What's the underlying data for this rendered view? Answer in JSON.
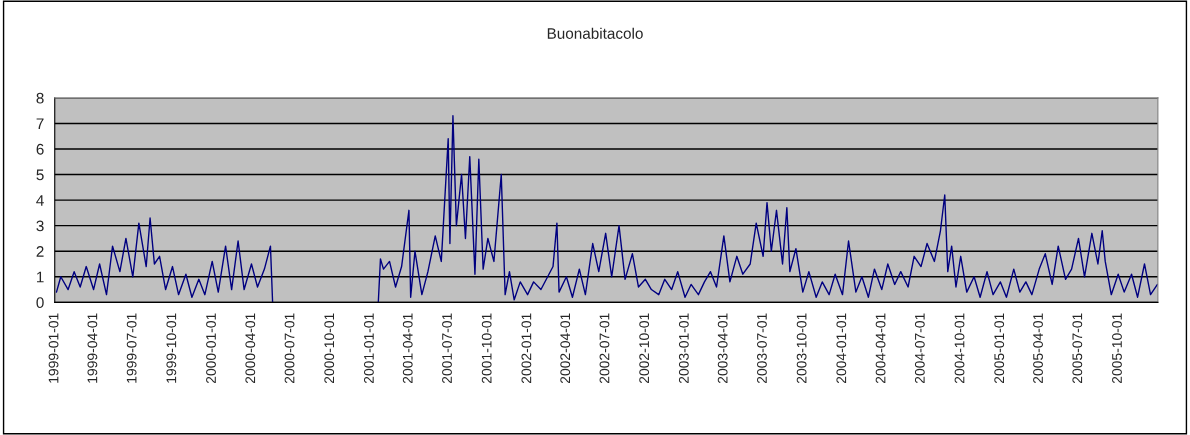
{
  "chart_data": {
    "type": "line",
    "title": "Buonabitacolo",
    "x": [
      "1999-01-05",
      "1999-01-15",
      "1999-02-01",
      "1999-02-15",
      "1999-03-01",
      "1999-03-15",
      "1999-04-01",
      "1999-04-15",
      "1999-05-01",
      "1999-05-15",
      "1999-06-01",
      "1999-06-15",
      "1999-07-01",
      "1999-07-15",
      "1999-08-01",
      "1999-08-10",
      "1999-08-20",
      "1999-09-01",
      "1999-09-15",
      "1999-10-01",
      "1999-10-15",
      "1999-11-01",
      "1999-11-15",
      "1999-12-01",
      "1999-12-15",
      "2000-01-01",
      "2000-01-15",
      "2000-02-01",
      "2000-02-15",
      "2000-03-01",
      "2000-03-15",
      "2000-04-01",
      "2000-04-15",
      "2000-05-01",
      "2000-05-15",
      "2000-05-20",
      "2000-09-01",
      "2001-01-20",
      "2001-01-25",
      "2001-02-01",
      "2001-02-15",
      "2001-03-01",
      "2001-03-15",
      "2001-04-01",
      "2001-04-05",
      "2001-04-15",
      "2001-05-01",
      "2001-05-15",
      "2001-06-01",
      "2001-06-15",
      "2001-07-01",
      "2001-07-05",
      "2001-07-12",
      "2001-07-20",
      "2001-08-01",
      "2001-08-10",
      "2001-08-20",
      "2001-09-01",
      "2001-09-10",
      "2001-09-20",
      "2001-10-01",
      "2001-10-15",
      "2001-11-01",
      "2001-11-10",
      "2001-11-20",
      "2001-12-01",
      "2001-12-15",
      "2002-01-01",
      "2002-01-15",
      "2002-02-01",
      "2002-03-01",
      "2002-03-10",
      "2002-03-15",
      "2002-04-01",
      "2002-04-15",
      "2002-05-01",
      "2002-05-15",
      "2002-06-01",
      "2002-06-15",
      "2002-07-01",
      "2002-07-15",
      "2002-08-01",
      "2002-08-15",
      "2002-09-01",
      "2002-09-15",
      "2002-10-01",
      "2002-10-15",
      "2002-11-01",
      "2002-11-15",
      "2002-12-01",
      "2002-12-15",
      "2003-01-01",
      "2003-01-15",
      "2003-02-01",
      "2003-02-15",
      "2003-03-01",
      "2003-03-15",
      "2003-04-01",
      "2003-04-15",
      "2003-05-01",
      "2003-05-15",
      "2003-06-01",
      "2003-06-15",
      "2003-07-01",
      "2003-07-10",
      "2003-07-20",
      "2003-08-01",
      "2003-08-15",
      "2003-08-25",
      "2003-09-01",
      "2003-09-15",
      "2003-10-01",
      "2003-10-15",
      "2003-11-01",
      "2003-11-15",
      "2003-12-01",
      "2003-12-15",
      "2004-01-01",
      "2004-01-15",
      "2004-02-01",
      "2004-02-15",
      "2004-03-01",
      "2004-03-15",
      "2004-04-01",
      "2004-04-15",
      "2004-05-01",
      "2004-05-15",
      "2004-06-01",
      "2004-06-15",
      "2004-07-01",
      "2004-07-15",
      "2004-08-01",
      "2004-08-15",
      "2004-08-25",
      "2004-09-01",
      "2004-09-10",
      "2004-09-20",
      "2004-10-01",
      "2004-10-15",
      "2004-11-01",
      "2004-11-15",
      "2004-12-01",
      "2004-12-15",
      "2005-01-01",
      "2005-01-15",
      "2005-02-01",
      "2005-02-15",
      "2005-03-01",
      "2005-03-15",
      "2005-04-01",
      "2005-04-15",
      "2005-05-01",
      "2005-05-15",
      "2005-06-01",
      "2005-06-15",
      "2005-07-01",
      "2005-07-15",
      "2005-08-01",
      "2005-08-15",
      "2005-08-25",
      "2005-09-01",
      "2005-09-15",
      "2005-10-01",
      "2005-10-15",
      "2005-11-01",
      "2005-11-15",
      "2005-12-01",
      "2005-12-15",
      "2005-12-31"
    ],
    "series": [
      {
        "color": "#000080",
        "values": [
          0.4,
          1.0,
          0.5,
          1.2,
          0.6,
          1.4,
          0.5,
          1.5,
          0.3,
          2.2,
          1.2,
          2.5,
          1.0,
          3.1,
          1.4,
          3.3,
          1.5,
          1.8,
          0.5,
          1.4,
          0.3,
          1.1,
          0.2,
          0.9,
          0.3,
          1.6,
          0.4,
          2.2,
          0.5,
          2.4,
          0.5,
          1.5,
          0.6,
          1.3,
          2.2,
          0,
          null,
          0,
          1.7,
          1.3,
          1.6,
          0.6,
          1.4,
          3.6,
          0.2,
          2.0,
          0.3,
          1.2,
          2.6,
          1.6,
          6.4,
          2.3,
          7.3,
          3.0,
          5.0,
          2.5,
          5.7,
          1.1,
          5.6,
          1.3,
          2.5,
          1.6,
          5.0,
          0.3,
          1.2,
          0.1,
          0.8,
          0.3,
          0.8,
          0.5,
          1.4,
          3.1,
          0.4,
          1.0,
          0.2,
          1.3,
          0.3,
          2.3,
          1.2,
          2.7,
          1.0,
          3.0,
          0.9,
          1.9,
          0.6,
          0.9,
          0.5,
          0.3,
          0.9,
          0.5,
          1.2,
          0.2,
          0.7,
          0.3,
          0.8,
          1.2,
          0.6,
          2.6,
          0.8,
          1.8,
          1.1,
          1.5,
          3.1,
          1.8,
          3.9,
          2.0,
          3.6,
          1.5,
          3.7,
          1.2,
          2.1,
          0.4,
          1.2,
          0.2,
          0.8,
          0.3,
          1.1,
          0.3,
          2.4,
          0.4,
          1.0,
          0.2,
          1.3,
          0.5,
          1.5,
          0.7,
          1.2,
          0.6,
          1.8,
          1.4,
          2.3,
          1.6,
          2.8,
          4.2,
          1.2,
          2.2,
          0.6,
          1.8,
          0.4,
          1.0,
          0.2,
          1.2,
          0.3,
          0.8,
          0.2,
          1.3,
          0.4,
          0.8,
          0.3,
          1.3,
          1.9,
          0.7,
          2.2,
          0.9,
          1.3,
          2.5,
          1.0,
          2.7,
          1.5,
          2.8,
          1.6,
          0.3,
          1.1,
          0.4,
          1.1,
          0.2,
          1.5,
          0.3,
          0.7
        ]
      }
    ],
    "xlim": [
      "1999-01-01",
      "2006-01-01"
    ],
    "xticks": [
      "1999-01-01",
      "1999-04-01",
      "1999-07-01",
      "1999-10-01",
      "2000-01-01",
      "2000-04-01",
      "2000-07-01",
      "2000-10-01",
      "2001-01-01",
      "2001-04-01",
      "2001-07-01",
      "2001-10-01",
      "2002-01-01",
      "2002-04-01",
      "2002-07-01",
      "2002-10-01",
      "2003-01-01",
      "2003-04-01",
      "2003-07-01",
      "2003-10-01",
      "2004-01-01",
      "2004-04-01",
      "2004-07-01",
      "2004-10-01",
      "2005-01-01",
      "2005-04-01",
      "2005-07-01",
      "2005-10-01"
    ],
    "ylim": [
      0,
      8
    ],
    "yticks": [
      0,
      1,
      2,
      3,
      4,
      5,
      6,
      7,
      8
    ],
    "grid": "y",
    "line_style": "solid",
    "marker": "none"
  }
}
